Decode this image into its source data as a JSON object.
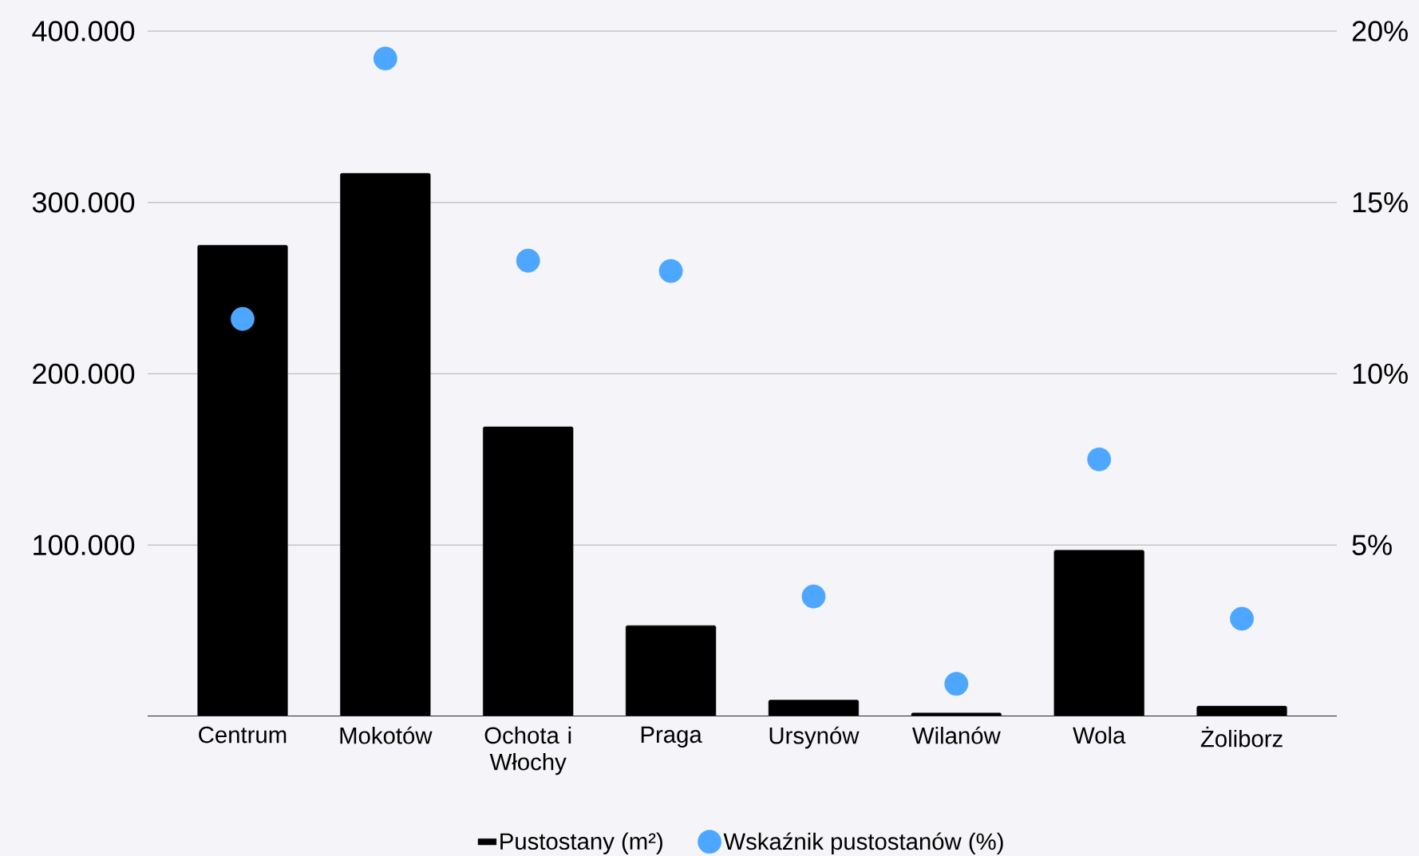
{
  "chart_data": {
    "type": "bar",
    "categories": [
      "Centrum",
      "Mokotów",
      "Ochota i Włochy",
      "Praga",
      "Ursynów",
      "Wilanów",
      "Wola",
      "Żoliborz"
    ],
    "series": [
      {
        "name": "Pustostany (m²)",
        "color": "#000000",
        "values": [
          275000,
          317000,
          169000,
          53000,
          9500,
          2000,
          97000,
          6000
        ]
      },
      {
        "name": "Wskaźnik pustostanów (%)",
        "type": "scatter",
        "axis": "y2",
        "color": "#4da6ff",
        "marker": "circle",
        "values": [
          11.6,
          19.2,
          13.3,
          13.0,
          3.5,
          0.95,
          7.5,
          2.85
        ]
      }
    ],
    "ylim": [
      0,
      400000
    ],
    "yticks": [
      {
        "value": 100000,
        "label": "100.000"
      },
      {
        "value": 200000,
        "label": "200.000"
      },
      {
        "value": 300000,
        "label": "300.000"
      },
      {
        "value": 400000,
        "label": "400.000"
      }
    ],
    "y2lim": [
      0,
      20
    ],
    "y2ticks": [
      {
        "value": 5,
        "label": "5%"
      },
      {
        "value": 10,
        "label": "10%"
      },
      {
        "value": 15,
        "label": "15%"
      },
      {
        "value": 20,
        "label": "20%"
      }
    ],
    "grid": "y",
    "legend": "bottom"
  }
}
